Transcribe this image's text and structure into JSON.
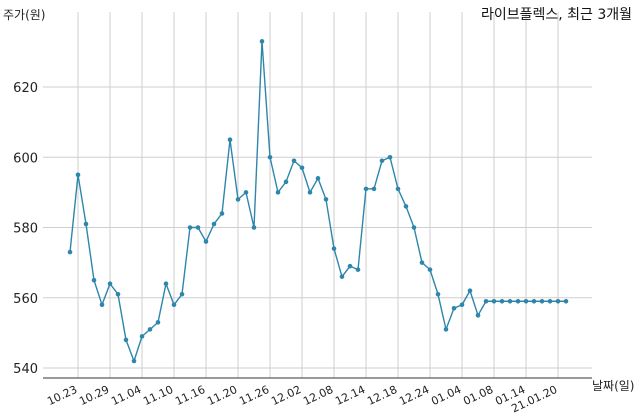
{
  "chart_data": {
    "type": "line",
    "title": "라이브플렉스, 최근 3개월",
    "xlabel": "날짜(일)",
    "ylabel": "주가(원)",
    "ylim": [
      538,
      637
    ],
    "yticks": [
      540,
      560,
      580,
      600,
      620
    ],
    "grid": true,
    "line_color": "#2e86ab",
    "x_tick_labels": [
      "10.23",
      "10.29",
      "11.04",
      "11.10",
      "11.16",
      "11.20",
      "11.26",
      "12.02",
      "12.08",
      "12.14",
      "12.18",
      "12.24",
      "01.04",
      "01.08",
      "01.14",
      "21.01.20"
    ],
    "series": [
      {
        "values": [
          573,
          595,
          581,
          565,
          558,
          564,
          561,
          548,
          542,
          549,
          551,
          553,
          564,
          558,
          561,
          580,
          580,
          576,
          581,
          584,
          605,
          588,
          590,
          580,
          633,
          600,
          590,
          593,
          599,
          597,
          590,
          594,
          588,
          574,
          566,
          569,
          568,
          591,
          591,
          599,
          600,
          591,
          586,
          580,
          570,
          568,
          561,
          551,
          557,
          558,
          562,
          555,
          559,
          559,
          559,
          559,
          559,
          559,
          559,
          559,
          559,
          559,
          559
        ]
      }
    ]
  }
}
